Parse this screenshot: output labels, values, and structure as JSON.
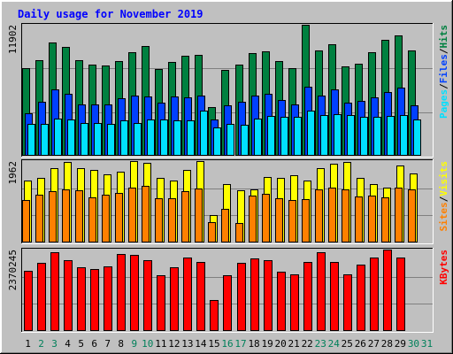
{
  "chart_data": {
    "title": "Daily usage for November 2019",
    "type": "bar",
    "days": [
      "1",
      "2",
      "3",
      "4",
      "5",
      "6",
      "7",
      "8",
      "9",
      "10",
      "11",
      "12",
      "13",
      "14",
      "15",
      "16",
      "17",
      "18",
      "19",
      "20",
      "21",
      "22",
      "23",
      "24",
      "25",
      "26",
      "27",
      "28",
      "29",
      "30",
      "31"
    ],
    "weekend_days": [
      "2",
      "3",
      "9",
      "10",
      "16",
      "17",
      "23",
      "24",
      "30",
      "31"
    ],
    "panels": [
      {
        "id": "hits",
        "max_label": "11902",
        "max": 11902,
        "series": [
          {
            "name": "Hits",
            "color": "#008040",
            "values": [
              8000,
              8700,
              10300,
              9900,
              8700,
              8300,
              8200,
              8600,
              9400,
              10000,
              7900,
              8500,
              9100,
              9200,
              4400,
              7800,
              8300,
              9300,
              9500,
              8600,
              8000,
              11902,
              9600,
              10100,
              8100,
              8400,
              9400,
              10500,
              10900,
              9600,
              0
            ]
          },
          {
            "name": "Files",
            "color": "#0040ff",
            "values": [
              3900,
              4900,
              6000,
              5600,
              4700,
              4700,
              4700,
              5200,
              5500,
              5400,
              4800,
              5400,
              5300,
              5500,
              3300,
              4600,
              4900,
              5500,
              5600,
              5100,
              4700,
              6300,
              5500,
              6000,
              4800,
              5000,
              5300,
              5800,
              6200,
              4600,
              0
            ]
          },
          {
            "name": "Pages",
            "color": "#00e0ff",
            "values": [
              2900,
              2900,
              3400,
              3300,
              3000,
              3000,
              2900,
              3200,
              3000,
              3300,
              3300,
              3200,
              3200,
              4100,
              2600,
              2900,
              2800,
              3400,
              3600,
              3500,
              3500,
              4100,
              3700,
              3800,
              3700,
              3500,
              3500,
              3600,
              3700,
              3300,
              0
            ]
          }
        ],
        "legend": [
          "Pages",
          "/",
          "Files",
          "/",
          "Hits"
        ]
      },
      {
        "id": "visits",
        "max_label": "1962",
        "max": 1962,
        "series": [
          {
            "name": "Visits",
            "color": "#ffff00",
            "values": [
              1500,
              1550,
              1800,
              1940,
              1800,
              1750,
              1640,
              1700,
              1962,
              1920,
              1550,
              1500,
              1750,
              1962,
              670,
              1400,
              1250,
              1270,
              1570,
              1550,
              1620,
              1500,
              1800,
              1900,
              1940,
              1560,
              1400,
              1330,
              1860,
              1660,
              0
            ]
          },
          {
            "name": "Sites",
            "color": "#ff8000",
            "values": [
              1030,
              1150,
              1240,
              1270,
              1250,
              1080,
              1160,
              1190,
              1330,
              1360,
              1070,
              1070,
              1230,
              1300,
              480,
              820,
              470,
              1120,
              1180,
              1070,
              1020,
              1040,
              1270,
              1320,
              1270,
              1110,
              1140,
              1080,
              1330,
              1280,
              0
            ]
          }
        ],
        "legend": [
          "Sites",
          "/",
          "Visits"
        ]
      },
      {
        "id": "kbytes",
        "max_label": "2370245",
        "max": 2370245,
        "series": [
          {
            "name": "KBytes",
            "color": "#ff0000",
            "values": [
              1750000,
              1980000,
              2300000,
              2070000,
              1850000,
              1800000,
              1880000,
              2240000,
              2220000,
              2050000,
              1620000,
              1850000,
              2150000,
              2000000,
              900000,
              1620000,
              1980000,
              2100000,
              2070000,
              1720000,
              1650000,
              2000000,
              2300000,
              2010000,
              1640000,
              1920000,
              2150000,
              2370245,
              2150000,
              0,
              0
            ]
          }
        ],
        "legend": [
          "KBytes"
        ]
      }
    ]
  }
}
